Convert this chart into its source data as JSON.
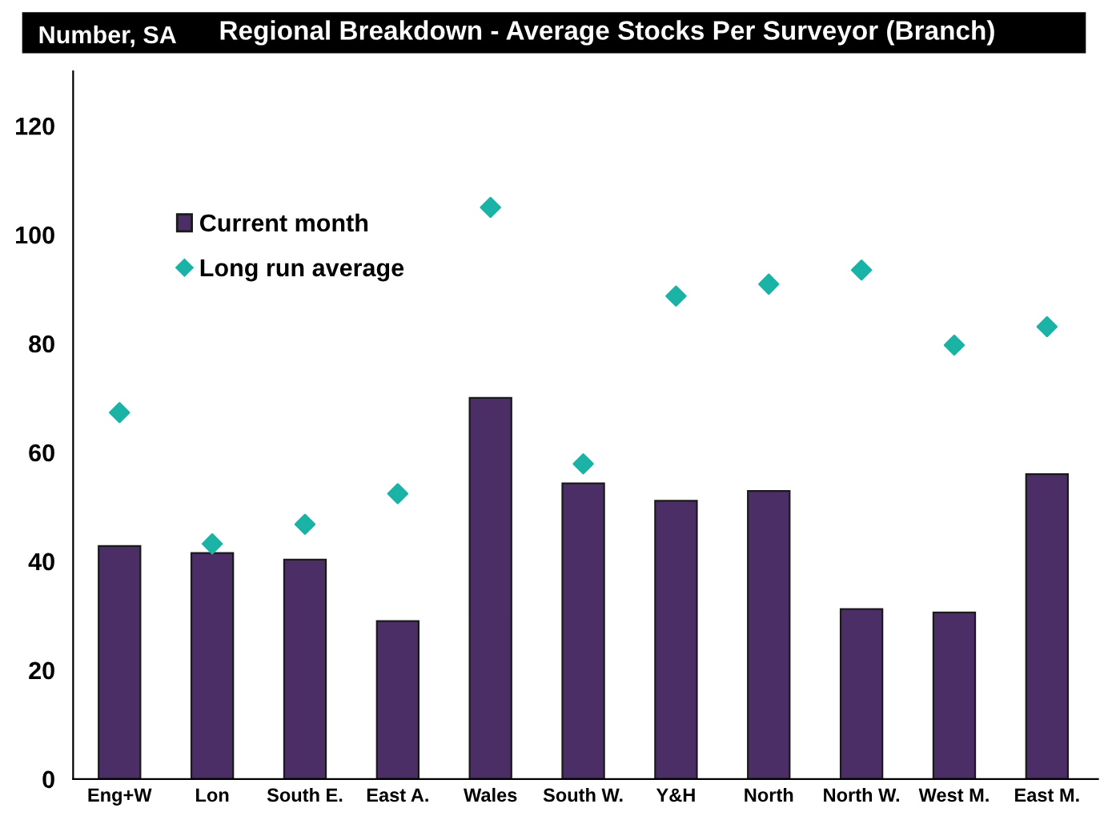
{
  "chart_data": {
    "type": "bar",
    "title": "Regional Breakdown - Average Stocks Per Surveyor (Branch)",
    "ylabel": "Number, SA",
    "categories": [
      "Eng+W",
      "Lon",
      "South E.",
      "East A.",
      "Wales",
      "South W.",
      "Y&H",
      "North",
      "North W.",
      "West M.",
      "East M."
    ],
    "series": [
      {
        "name": "Current month",
        "type": "bar",
        "color": "#4b2e66",
        "values": [
          42.8,
          41.5,
          40.3,
          29.0,
          70.0,
          54.3,
          51.1,
          52.9,
          31.2,
          30.6,
          56.0
        ]
      },
      {
        "name": "Long run average",
        "type": "scatter",
        "marker": "diamond",
        "color": "#1ab3a6",
        "values": [
          67.3,
          43.2,
          46.8,
          52.4,
          105.0,
          57.9,
          88.7,
          90.9,
          93.5,
          79.7,
          83.1
        ]
      }
    ],
    "ylim": [
      0,
      130
    ],
    "yticks": [
      0,
      20,
      40,
      60,
      80,
      100,
      120
    ],
    "grid": false,
    "legend": "top left"
  }
}
